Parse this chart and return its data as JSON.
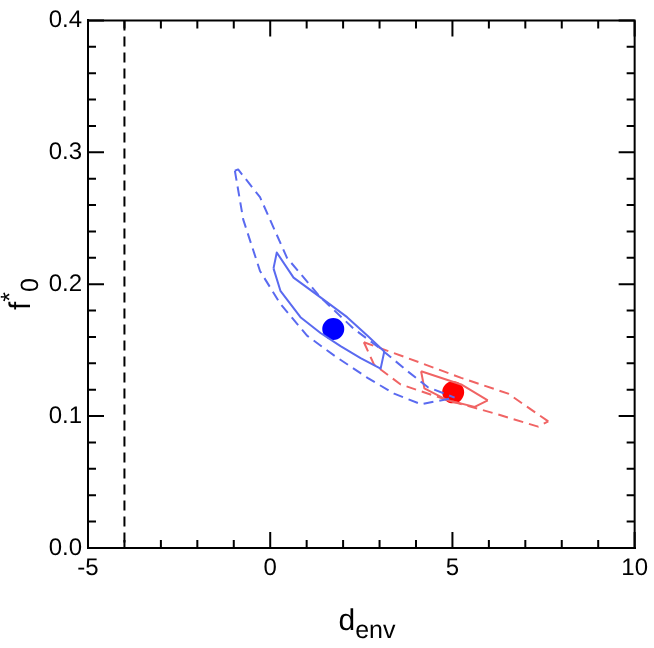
{
  "chart_data": {
    "type": "line",
    "xlabel": "d$_{env}$",
    "ylabel": "f$^{*}$$_{0}$",
    "xlim": [
      -5,
      10
    ],
    "ylim": [
      0,
      0.4
    ],
    "xticks": [
      -5,
      {
        "value": -4,
        "label": null
      },
      {
        "value": -3,
        "label": null
      },
      {
        "value": -2,
        "label": null
      },
      {
        "value": -1,
        "label": null
      },
      0,
      {
        "value": 1,
        "label": null
      },
      {
        "value": 2,
        "label": null
      },
      {
        "value": 3,
        "label": null
      },
      {
        "value": 4,
        "label": null
      },
      5,
      {
        "value": 6,
        "label": null
      },
      {
        "value": 7,
        "label": null
      },
      {
        "value": 8,
        "label": null
      },
      {
        "value": 9,
        "label": null
      },
      10
    ],
    "yticks": [
      {
        "value": 0,
        "label": "0.0"
      },
      {
        "value": 0.02,
        "label": null
      },
      {
        "value": 0.04,
        "label": null
      },
      {
        "value": 0.06,
        "label": null
      },
      {
        "value": 0.08,
        "label": null
      },
      0.1,
      {
        "value": 0.12,
        "label": null
      },
      {
        "value": 0.14,
        "label": null
      },
      {
        "value": 0.16,
        "label": null
      },
      {
        "value": 0.18,
        "label": null
      },
      0.2,
      {
        "value": 0.22,
        "label": null
      },
      {
        "value": 0.24,
        "label": null
      },
      {
        "value": 0.26,
        "label": null
      },
      {
        "value": 0.28,
        "label": null
      },
      0.3,
      {
        "value": 0.32,
        "label": null
      },
      {
        "value": 0.34,
        "label": null
      },
      {
        "value": 0.36,
        "label": null
      },
      {
        "value": 0.38,
        "label": null
      },
      0.4
    ],
    "grid": false,
    "legend": false,
    "series": [
      {
        "color": "#5a6af0",
        "line_style": "dashed",
        "x": [
          -0.97,
          -0.88,
          -0.28,
          0.46,
          1.38,
          2.3,
          3.03,
          3.77,
          4.32,
          5.06
        ],
        "values": [
          0.286,
          0.287,
          0.266,
          0.22,
          0.19,
          0.166,
          0.151,
          0.134,
          0.122,
          0.114
        ]
      },
      {
        "color": "#5a6af0",
        "line_style": "dashed",
        "x": [
          -0.97,
          -0.74,
          -0.28,
          0.28,
          1.01,
          1.75,
          2.67,
          3.4,
          4.14,
          5.06
        ],
        "values": [
          0.286,
          0.249,
          0.21,
          0.185,
          0.161,
          0.146,
          0.129,
          0.117,
          0.109,
          0.114
        ]
      },
      {
        "color": "#5a6af0",
        "line_style": "solid",
        "x": [
          0.09,
          0.18,
          0.64,
          1.38,
          2.11,
          2.67,
          3.13
        ],
        "values": [
          0.212,
          0.224,
          0.205,
          0.19,
          0.175,
          0.161,
          0.149
        ]
      },
      {
        "color": "#5a6af0",
        "line_style": "solid",
        "x": [
          0.09,
          0.28,
          0.83,
          1.38,
          1.93,
          2.48,
          3.03,
          3.13
        ],
        "values": [
          0.212,
          0.195,
          0.175,
          0.163,
          0.153,
          0.144,
          0.136,
          0.149
        ]
      },
      {
        "color": "#f06464",
        "line_style": "dashed",
        "x": [
          2.57,
          3.77,
          5.24,
          6.53,
          7.63
        ],
        "values": [
          0.156,
          0.144,
          0.129,
          0.117,
          0.096
        ]
      },
      {
        "color": "#f06464",
        "line_style": "dashed",
        "x": [
          2.57,
          2.85,
          3.58,
          4.87,
          6.16,
          7.35,
          7.63
        ],
        "values": [
          0.156,
          0.139,
          0.124,
          0.112,
          0.102,
          0.092,
          0.096
        ]
      },
      {
        "color": "#f06464",
        "line_style": "solid",
        "x": [
          4.14,
          5.24,
          5.97
        ],
        "values": [
          0.134,
          0.124,
          0.112
        ]
      },
      {
        "color": "#f06464",
        "line_style": "solid",
        "x": [
          4.14,
          4.23,
          4.87,
          5.61,
          5.97
        ],
        "values": [
          0.134,
          0.121,
          0.112,
          0.107,
          0.112
        ]
      },
      {
        "type": "scatter",
        "color": "#0000ff",
        "marker": "circle",
        "x": [
          1.73
        ],
        "values": [
          0.166
        ]
      },
      {
        "type": "scatter",
        "color": "#ff0000",
        "marker": "circle",
        "x": [
          5.02
        ],
        "values": [
          0.118
        ]
      }
    ],
    "ref_lines": [
      {
        "axis": "x",
        "value": -4,
        "color": "#000000",
        "line_style": "dashed"
      }
    ]
  }
}
